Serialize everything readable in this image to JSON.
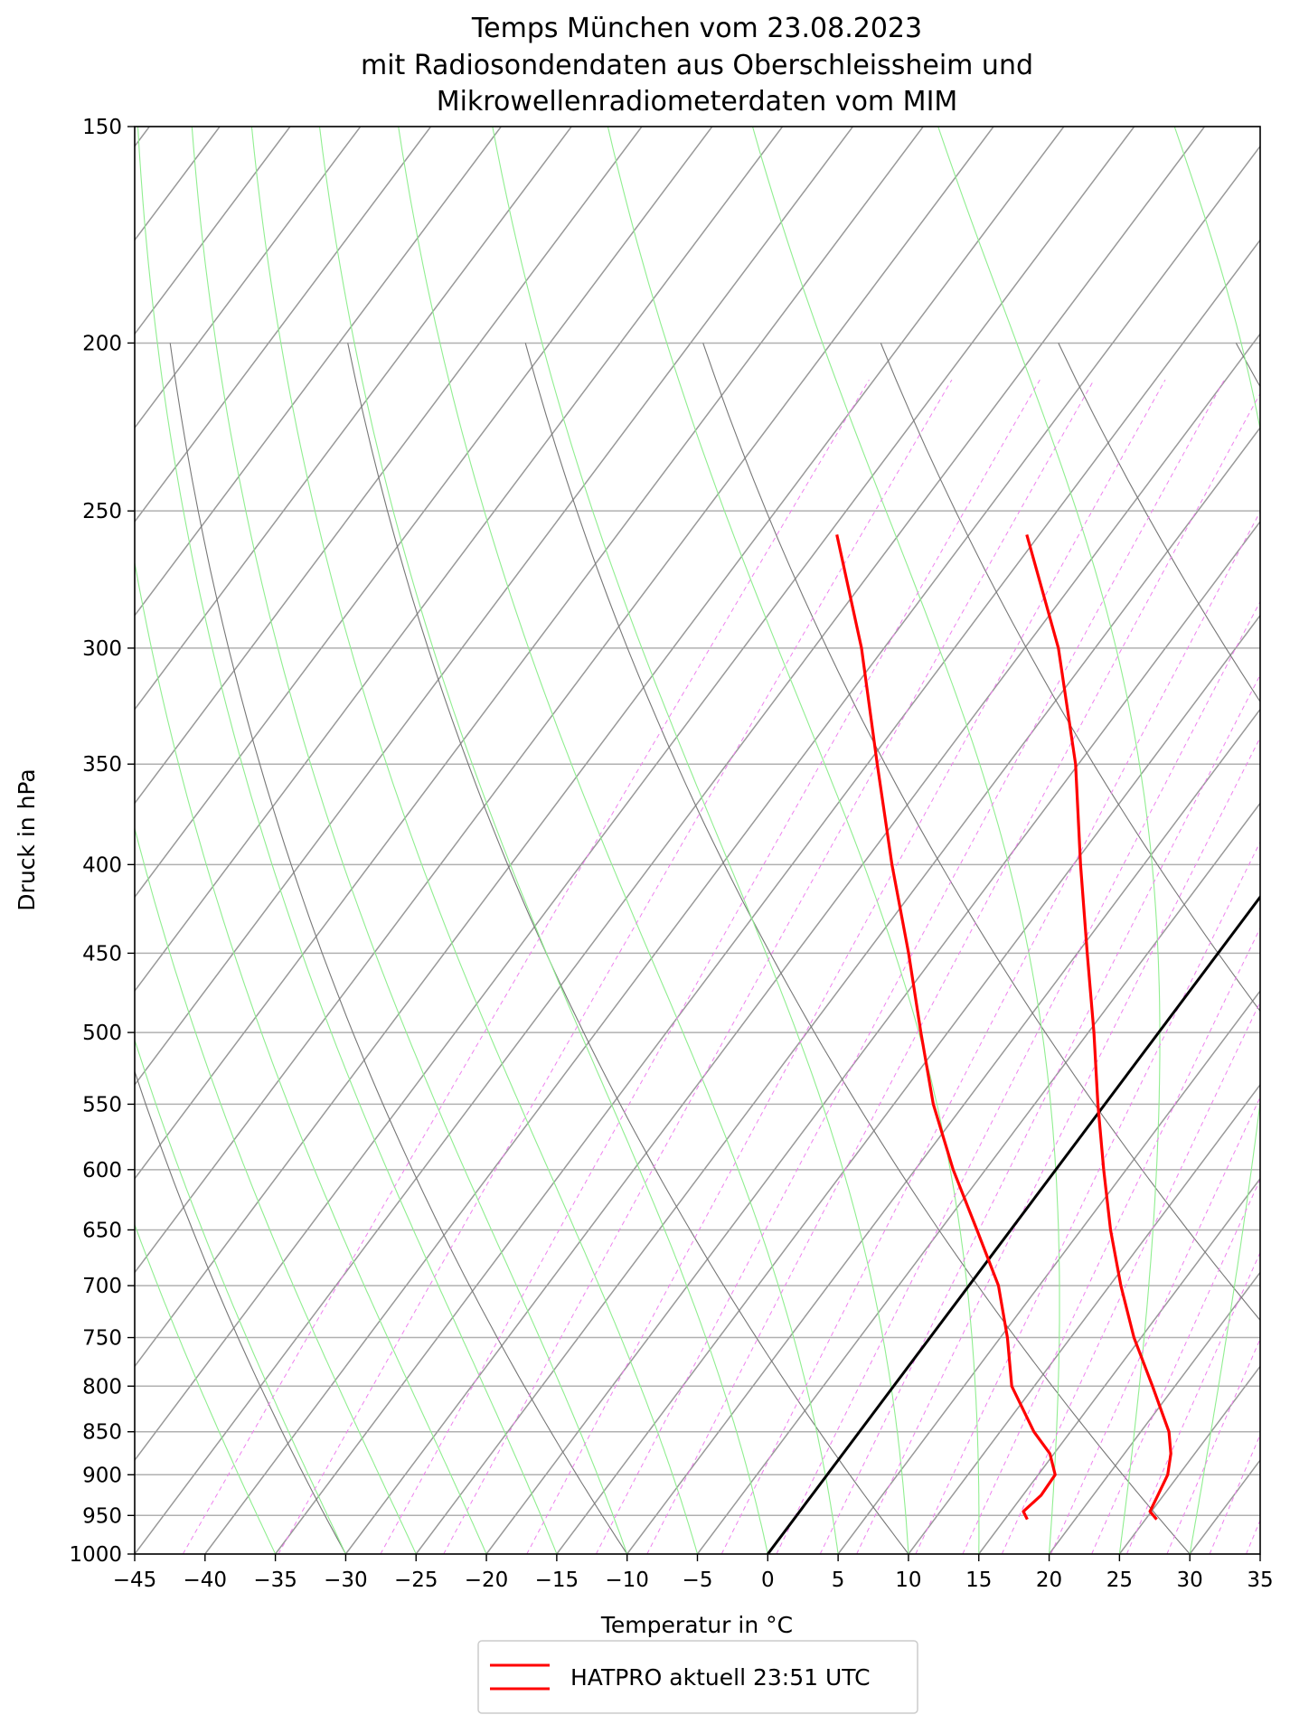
{
  "chart_data": {
    "type": "line",
    "subtype": "skew-T log-p diagram",
    "title_lines": [
      "Temps München vom 23.08.2023",
      "mit Radiosondendaten aus Oberschleissheim und",
      "Mikrowellenradiometerdaten vom MIM"
    ],
    "xlabel": "Temperatur in  °C",
    "ylabel": "Druck in hPa",
    "xlim": [
      -45,
      35
    ],
    "ylim": [
      1000,
      150
    ],
    "y_scale": "log",
    "x_ticks": [
      -45,
      -40,
      -35,
      -30,
      -25,
      -20,
      -15,
      -10,
      -5,
      0,
      5,
      10,
      15,
      20,
      25,
      30,
      35
    ],
    "y_ticks": [
      1000,
      950,
      900,
      850,
      800,
      750,
      700,
      650,
      600,
      550,
      500,
      450,
      400,
      350,
      300,
      250,
      200,
      150
    ],
    "grid": true,
    "legend": {
      "placement": "bottom-center",
      "entries": [
        "HATPRO aktuell 23:51 UTC"
      ]
    },
    "reference_lines": {
      "isotherms_color": "#999999",
      "dry_adiabats_color": "#777777",
      "moist_adiabats_color": "#90ee90",
      "mixing_ratio_color": "#ee82ee",
      "zero_isotherm_color": "#000000"
    },
    "series": [
      {
        "name": "HATPRO aktuell 23:51 UTC",
        "role": "temperature",
        "color": "#ff0000",
        "points": [
          {
            "p": 955,
            "t": 25.8
          },
          {
            "p": 945,
            "t": 24.9
          },
          {
            "p": 925,
            "t": 24.6
          },
          {
            "p": 900,
            "t": 24.2
          },
          {
            "p": 875,
            "t": 23.3
          },
          {
            "p": 850,
            "t": 22.0
          },
          {
            "p": 800,
            "t": 18.4
          },
          {
            "p": 750,
            "t": 14.5
          },
          {
            "p": 700,
            "t": 10.8
          },
          {
            "p": 650,
            "t": 7.1
          },
          {
            "p": 600,
            "t": 3.4
          },
          {
            "p": 550,
            "t": -0.5
          },
          {
            "p": 500,
            "t": -4.6
          },
          {
            "p": 450,
            "t": -9.3
          },
          {
            "p": 400,
            "t": -14.5
          },
          {
            "p": 350,
            "t": -20.2
          },
          {
            "p": 300,
            "t": -27.6
          },
          {
            "p": 258,
            "t": -35.9
          }
        ]
      },
      {
        "name": "",
        "role": "dewpoint",
        "color": "#ff0000",
        "points": [
          {
            "p": 955,
            "t": 16.6
          },
          {
            "p": 945,
            "t": 15.9
          },
          {
            "p": 925,
            "t": 16.3
          },
          {
            "p": 900,
            "t": 16.2
          },
          {
            "p": 875,
            "t": 14.7
          },
          {
            "p": 850,
            "t": 12.4
          },
          {
            "p": 800,
            "t": 8.4
          },
          {
            "p": 750,
            "t": 5.5
          },
          {
            "p": 700,
            "t": 2.1
          },
          {
            "p": 650,
            "t": -2.4
          },
          {
            "p": 600,
            "t": -7.3
          },
          {
            "p": 550,
            "t": -12.2
          },
          {
            "p": 500,
            "t": -16.9
          },
          {
            "p": 450,
            "t": -22.0
          },
          {
            "p": 400,
            "t": -27.9
          },
          {
            "p": 350,
            "t": -34.3
          },
          {
            "p": 300,
            "t": -41.6
          },
          {
            "p": 258,
            "t": -49.4
          }
        ]
      }
    ]
  }
}
